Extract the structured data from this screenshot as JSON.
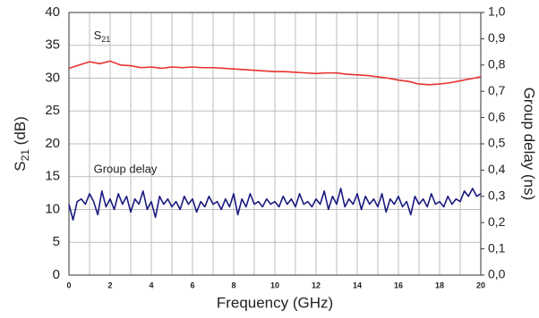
{
  "chart_data": {
    "type": "line",
    "x_label": "Frequency (GHz)",
    "y_label": {
      "main": "S",
      "sub": "21",
      "unit": " (dB)"
    },
    "y2_label": "Group delay (ns)",
    "xlim": [
      0,
      20
    ],
    "xticks": [
      0,
      2,
      4,
      6,
      8,
      10,
      12,
      14,
      16,
      18,
      20
    ],
    "xminorticks": [
      1,
      3,
      5,
      7,
      9,
      11,
      13,
      15,
      17,
      19
    ],
    "ylim": [
      0,
      40
    ],
    "yticks": [
      0,
      5,
      10,
      15,
      20,
      25,
      30,
      35,
      40
    ],
    "y2lim": [
      0,
      1
    ],
    "y2ticks": [
      {
        "value": 0,
        "label": "0,0"
      },
      {
        "value": 0.1,
        "label": "0,1"
      },
      {
        "value": 0.2,
        "label": "0,2"
      },
      {
        "value": 0.3,
        "label": "0,3"
      },
      {
        "value": 0.4,
        "label": "0,4"
      },
      {
        "value": 0.5,
        "label": "0,5"
      },
      {
        "value": 0.6,
        "label": "0,6"
      },
      {
        "value": 0.7,
        "label": "0,7"
      },
      {
        "value": 0.8,
        "label": "0,8"
      },
      {
        "value": 0.9,
        "label": "0,9"
      },
      {
        "value": 1,
        "label": "1,0"
      }
    ],
    "grid": true,
    "series": [
      {
        "name": "S",
        "name_sub": "21",
        "color": "#e8312f",
        "axis": "y",
        "x": [
          0,
          0.5,
          1,
          1.5,
          2,
          2.5,
          3,
          3.5,
          4,
          4.5,
          5,
          5.5,
          6,
          6.5,
          7,
          7.5,
          8,
          8.5,
          9,
          9.5,
          10,
          10.5,
          11,
          11.5,
          12,
          12.5,
          13,
          13.5,
          14,
          14.5,
          15,
          15.5,
          16,
          16.5,
          17,
          17.5,
          18,
          18.5,
          19,
          19.5,
          20
        ],
        "values": [
          31.5,
          32.0,
          32.5,
          32.2,
          32.6,
          32.0,
          31.9,
          31.6,
          31.7,
          31.5,
          31.7,
          31.6,
          31.7,
          31.6,
          31.6,
          31.5,
          31.4,
          31.3,
          31.2,
          31.1,
          31.0,
          31.0,
          30.9,
          30.8,
          30.7,
          30.8,
          30.8,
          30.6,
          30.5,
          30.4,
          30.2,
          30.0,
          29.7,
          29.5,
          29.1,
          29.0,
          29.1,
          29.3,
          29.6,
          29.9,
          30.2
        ]
      },
      {
        "name": "Group delay",
        "color": "#1a1a80",
        "axis": "y2",
        "x": [
          0,
          0.2,
          0.4,
          0.6,
          0.8,
          1,
          1.2,
          1.4,
          1.6,
          1.8,
          2,
          2.2,
          2.4,
          2.6,
          2.8,
          3,
          3.2,
          3.4,
          3.6,
          3.8,
          4,
          4.2,
          4.4,
          4.6,
          4.8,
          5,
          5.2,
          5.4,
          5.6,
          5.8,
          6,
          6.2,
          6.4,
          6.6,
          6.8,
          7,
          7.2,
          7.4,
          7.6,
          7.8,
          8,
          8.2,
          8.4,
          8.6,
          8.8,
          9,
          9.2,
          9.4,
          9.6,
          9.8,
          10,
          10.2,
          10.4,
          10.6,
          10.8,
          11,
          11.2,
          11.4,
          11.6,
          11.8,
          12,
          12.2,
          12.4,
          12.6,
          12.8,
          13,
          13.2,
          13.4,
          13.6,
          13.8,
          14,
          14.2,
          14.4,
          14.6,
          14.8,
          15,
          15.2,
          15.4,
          15.6,
          15.8,
          16,
          16.2,
          16.4,
          16.6,
          16.8,
          17,
          17.2,
          17.4,
          17.6,
          17.8,
          18,
          18.2,
          18.4,
          18.6,
          18.8,
          19,
          19.2,
          19.4,
          19.6,
          19.8,
          20
        ],
        "values": [
          0.27,
          0.21,
          0.28,
          0.29,
          0.27,
          0.31,
          0.28,
          0.23,
          0.32,
          0.26,
          0.29,
          0.25,
          0.31,
          0.27,
          0.3,
          0.24,
          0.29,
          0.27,
          0.32,
          0.25,
          0.28,
          0.22,
          0.3,
          0.27,
          0.29,
          0.26,
          0.28,
          0.25,
          0.3,
          0.27,
          0.29,
          0.24,
          0.28,
          0.26,
          0.3,
          0.27,
          0.28,
          0.25,
          0.29,
          0.26,
          0.31,
          0.23,
          0.29,
          0.26,
          0.31,
          0.27,
          0.28,
          0.26,
          0.29,
          0.27,
          0.28,
          0.26,
          0.3,
          0.27,
          0.29,
          0.26,
          0.31,
          0.27,
          0.28,
          0.26,
          0.29,
          0.27,
          0.32,
          0.25,
          0.3,
          0.27,
          0.33,
          0.26,
          0.29,
          0.27,
          0.31,
          0.25,
          0.3,
          0.27,
          0.29,
          0.26,
          0.31,
          0.24,
          0.29,
          0.27,
          0.3,
          0.26,
          0.28,
          0.23,
          0.3,
          0.27,
          0.29,
          0.26,
          0.31,
          0.27,
          0.28,
          0.26,
          0.3,
          0.27,
          0.29,
          0.28,
          0.32,
          0.3,
          0.33,
          0.3,
          0.31
        ]
      }
    ]
  }
}
